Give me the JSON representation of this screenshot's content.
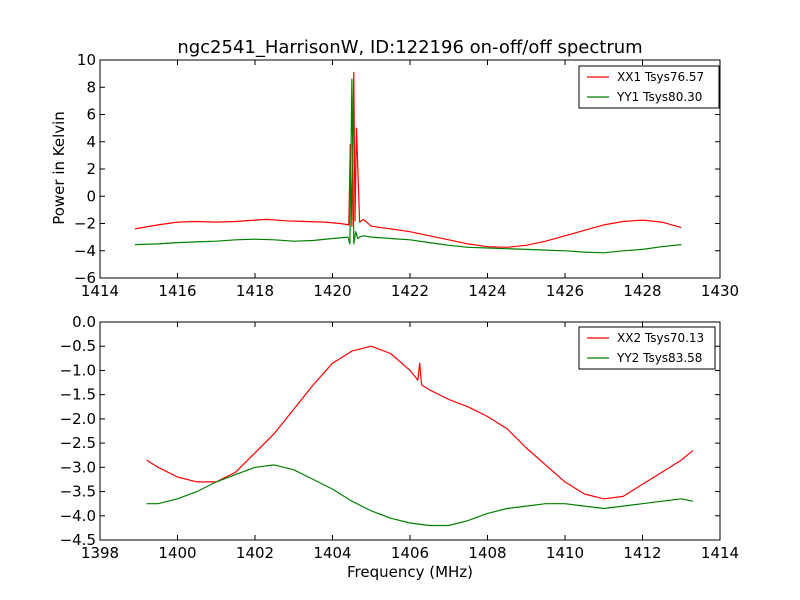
{
  "chart_data": [
    {
      "type": "line",
      "title": "ngc2541_HarrisonW, ID:122196 on-off/off spectrum",
      "xlabel": "",
      "ylabel": "Power in Kelvin",
      "xlim": [
        1414,
        1430
      ],
      "ylim": [
        -6,
        10
      ],
      "xticks": [
        1414,
        1416,
        1418,
        1420,
        1422,
        1424,
        1426,
        1428,
        1430
      ],
      "yticks": [
        -6,
        -4,
        -2,
        0,
        2,
        4,
        6,
        8,
        10
      ],
      "ytick_labels": [
        "−6",
        "−4",
        "−2",
        "0",
        "2",
        "4",
        "6",
        "8",
        "10"
      ],
      "grid": false,
      "legend_position": "top-right",
      "series": [
        {
          "name": "XX1 Tsys76.57",
          "color": "#ff0000",
          "x": [
            1414.9,
            1415.5,
            1416.0,
            1416.5,
            1417.0,
            1417.5,
            1418.0,
            1418.3,
            1418.8,
            1419.3,
            1419.8,
            1420.2,
            1420.42,
            1420.46,
            1420.5,
            1420.55,
            1420.58,
            1420.62,
            1420.7,
            1420.8,
            1421.0,
            1421.5,
            1422.0,
            1422.5,
            1423.0,
            1423.5,
            1424.0,
            1424.5,
            1425.0,
            1425.5,
            1426.0,
            1426.5,
            1427.0,
            1427.5,
            1428.0,
            1428.5,
            1429.0
          ],
          "y": [
            -2.4,
            -2.1,
            -1.9,
            -1.85,
            -1.9,
            -1.85,
            -1.75,
            -1.7,
            -1.8,
            -1.85,
            -1.9,
            -2.0,
            -2.1,
            3.8,
            -2.2,
            9.1,
            -1.8,
            5.0,
            -1.9,
            -1.7,
            -2.2,
            -2.4,
            -2.6,
            -2.9,
            -3.2,
            -3.5,
            -3.7,
            -3.75,
            -3.6,
            -3.3,
            -2.9,
            -2.5,
            -2.1,
            -1.85,
            -1.75,
            -1.9,
            -2.3
          ]
        },
        {
          "name": "YY1 Tsys80.30",
          "color": "#008000",
          "x": [
            1414.9,
            1415.5,
            1416.0,
            1416.5,
            1417.0,
            1417.5,
            1418.0,
            1418.5,
            1419.0,
            1419.5,
            1420.0,
            1420.4,
            1420.45,
            1420.5,
            1420.55,
            1420.6,
            1420.65,
            1420.7,
            1420.8,
            1421.0,
            1421.5,
            1422.0,
            1422.5,
            1423.0,
            1423.5,
            1424.0,
            1424.5,
            1425.0,
            1425.5,
            1426.0,
            1426.5,
            1427.0,
            1427.5,
            1428.0,
            1428.5,
            1429.0
          ],
          "y": [
            -3.55,
            -3.5,
            -3.4,
            -3.35,
            -3.3,
            -3.2,
            -3.15,
            -3.2,
            -3.3,
            -3.25,
            -3.1,
            -3.0,
            -3.5,
            8.6,
            -3.5,
            -2.6,
            -3.1,
            -3.0,
            -2.9,
            -3.0,
            -3.1,
            -3.2,
            -3.4,
            -3.6,
            -3.75,
            -3.8,
            -3.85,
            -3.9,
            -3.95,
            -4.0,
            -4.1,
            -4.15,
            -4.0,
            -3.9,
            -3.7,
            -3.55
          ]
        }
      ]
    },
    {
      "type": "line",
      "title": "",
      "xlabel": "Frequency (MHz)",
      "ylabel": "",
      "xlim": [
        1398,
        1414
      ],
      "ylim": [
        -4.5,
        0.0
      ],
      "xticks": [
        1398,
        1400,
        1402,
        1404,
        1406,
        1408,
        1410,
        1412,
        1414
      ],
      "yticks": [
        0.0,
        -0.5,
        -1.0,
        -1.5,
        -2.0,
        -2.5,
        -3.0,
        -3.5,
        -4.0,
        -4.5
      ],
      "ytick_labels": [
        "0.0",
        "−0.5",
        "−1.0",
        "−1.5",
        "−2.0",
        "−2.5",
        "−3.0",
        "−3.5",
        "−4.0",
        "−4.5"
      ],
      "grid": false,
      "legend_position": "top-right",
      "series": [
        {
          "name": "XX2 Tsys70.13",
          "color": "#ff0000",
          "x": [
            1399.2,
            1399.5,
            1400.0,
            1400.5,
            1401.0,
            1401.5,
            1402.0,
            1402.5,
            1403.0,
            1403.5,
            1404.0,
            1404.5,
            1405.0,
            1405.5,
            1406.0,
            1406.2,
            1406.25,
            1406.3,
            1406.5,
            1407.0,
            1407.5,
            1408.0,
            1408.5,
            1409.0,
            1409.5,
            1410.0,
            1410.5,
            1411.0,
            1411.5,
            1412.0,
            1412.5,
            1413.0,
            1413.3
          ],
          "y": [
            -2.85,
            -3.0,
            -3.2,
            -3.3,
            -3.3,
            -3.1,
            -2.7,
            -2.3,
            -1.8,
            -1.3,
            -0.85,
            -0.6,
            -0.5,
            -0.65,
            -1.0,
            -1.2,
            -0.85,
            -1.3,
            -1.4,
            -1.6,
            -1.75,
            -1.95,
            -2.2,
            -2.6,
            -2.95,
            -3.3,
            -3.55,
            -3.65,
            -3.6,
            -3.35,
            -3.1,
            -2.85,
            -2.65
          ]
        },
        {
          "name": "YY2 Tsys83.58",
          "color": "#008000",
          "x": [
            1399.2,
            1399.5,
            1400.0,
            1400.5,
            1401.0,
            1401.5,
            1402.0,
            1402.5,
            1403.0,
            1403.5,
            1404.0,
            1404.5,
            1405.0,
            1405.5,
            1406.0,
            1406.5,
            1407.0,
            1407.5,
            1408.0,
            1408.5,
            1409.0,
            1409.5,
            1410.0,
            1410.5,
            1411.0,
            1411.5,
            1412.0,
            1412.5,
            1413.0,
            1413.3
          ],
          "y": [
            -3.75,
            -3.75,
            -3.65,
            -3.5,
            -3.3,
            -3.15,
            -3.0,
            -2.95,
            -3.05,
            -3.25,
            -3.45,
            -3.7,
            -3.9,
            -4.05,
            -4.15,
            -4.2,
            -4.2,
            -4.1,
            -3.95,
            -3.85,
            -3.8,
            -3.75,
            -3.75,
            -3.8,
            -3.85,
            -3.8,
            -3.75,
            -3.7,
            -3.65,
            -3.7
          ]
        }
      ]
    }
  ]
}
